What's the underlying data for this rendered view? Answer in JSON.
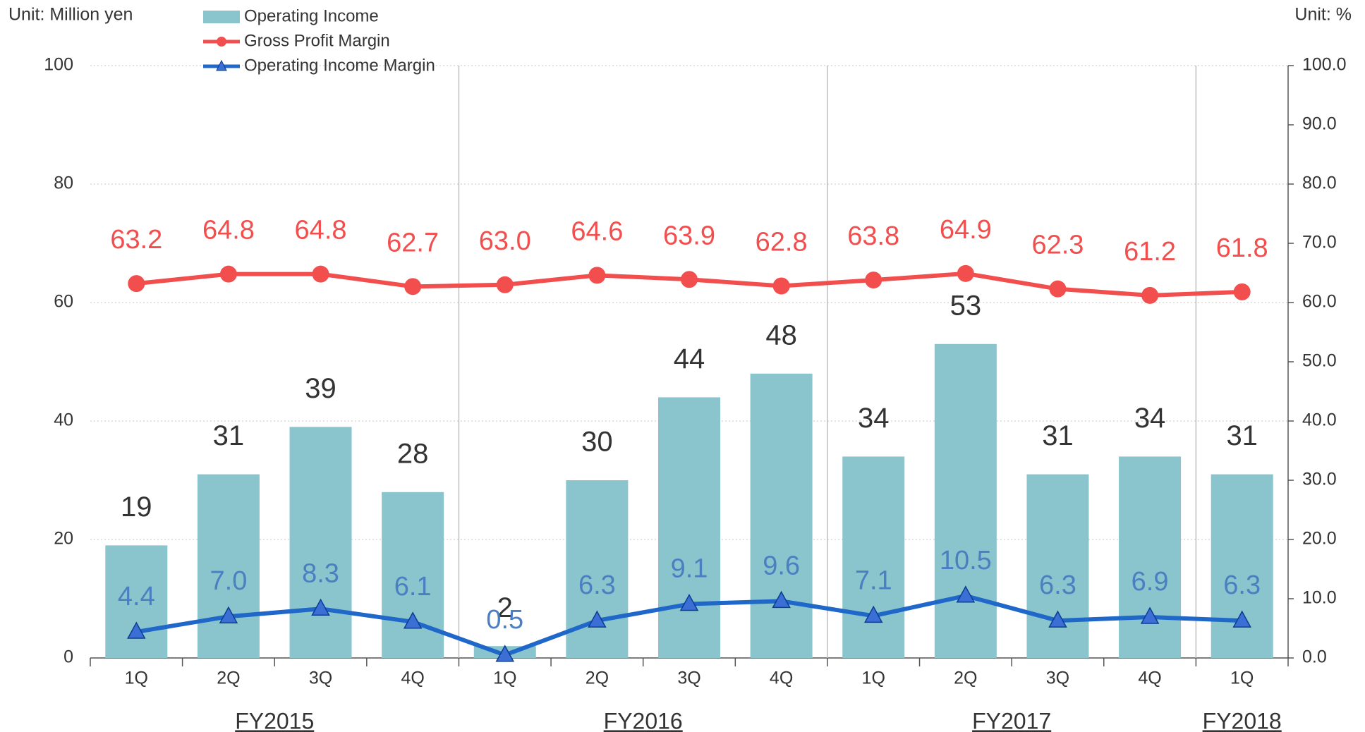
{
  "chart_data": {
    "type": "bar_line",
    "y_label": "Unit: Million yen",
    "y2_label": "Unit: %",
    "categories": [
      "1Q",
      "2Q",
      "3Q",
      "4Q",
      "1Q",
      "2Q",
      "3Q",
      "4Q",
      "1Q",
      "2Q",
      "3Q",
      "4Q",
      "1Q"
    ],
    "groups": [
      {
        "label": "FY2015",
        "count": 4
      },
      {
        "label": "FY2016",
        "count": 4
      },
      {
        "label": "FY2017",
        "count": 4
      },
      {
        "label": "FY2018",
        "count": 1
      }
    ],
    "series": [
      {
        "name": "Operating Income",
        "type": "bar",
        "color": "#8ac4cc",
        "values": [
          19,
          31,
          39,
          28,
          2,
          30,
          44,
          48,
          34,
          53,
          31,
          34,
          31
        ]
      },
      {
        "name": "Gross Profit Margin",
        "type": "line",
        "marker": "circle",
        "axis": "y2",
        "color": "#f24e4e",
        "values": [
          63.2,
          64.8,
          64.8,
          62.7,
          63.0,
          64.6,
          63.9,
          62.8,
          63.8,
          64.9,
          62.3,
          61.2,
          61.8
        ],
        "value_labels": [
          "63.2",
          "64.8",
          "64.8",
          "62.7",
          "63.0",
          "64.6",
          "63.9",
          "62.8",
          "63.8",
          "64.9",
          "62.3",
          "61.2",
          "61.8"
        ]
      },
      {
        "name": "Operating Income Margin",
        "type": "line",
        "marker": "triangle",
        "axis": "y2",
        "color": "#1f67c9",
        "values": [
          4.4,
          7.0,
          8.3,
          6.1,
          0.5,
          6.3,
          9.1,
          9.6,
          7.1,
          10.5,
          6.3,
          6.9,
          6.3
        ],
        "value_labels": [
          "4.4",
          "7.0",
          "8.3",
          "6.1",
          "0.5",
          "6.3",
          "9.1",
          "9.6",
          "7.1",
          "10.5",
          "6.3",
          "6.9",
          "6.3"
        ]
      }
    ],
    "ylim": [
      0,
      100
    ],
    "yticks": [
      0,
      20,
      40,
      60,
      80,
      100
    ],
    "y2lim": [
      0,
      100
    ],
    "y2ticks": [
      {
        "value": 0,
        "label": "0.0"
      },
      {
        "value": 10,
        "label": "10.0"
      },
      {
        "value": 20,
        "label": "20.0"
      },
      {
        "value": 30,
        "label": "30.0"
      },
      {
        "value": 40,
        "label": "40.0"
      },
      {
        "value": 50,
        "label": "50.0"
      },
      {
        "value": 60,
        "label": "60.0"
      },
      {
        "value": 70,
        "label": "70.0"
      },
      {
        "value": 80,
        "label": "80.0"
      },
      {
        "value": 90,
        "label": "90.0"
      },
      {
        "value": 100,
        "label": "100.0"
      }
    ],
    "grid": true,
    "legend": "top-left"
  }
}
